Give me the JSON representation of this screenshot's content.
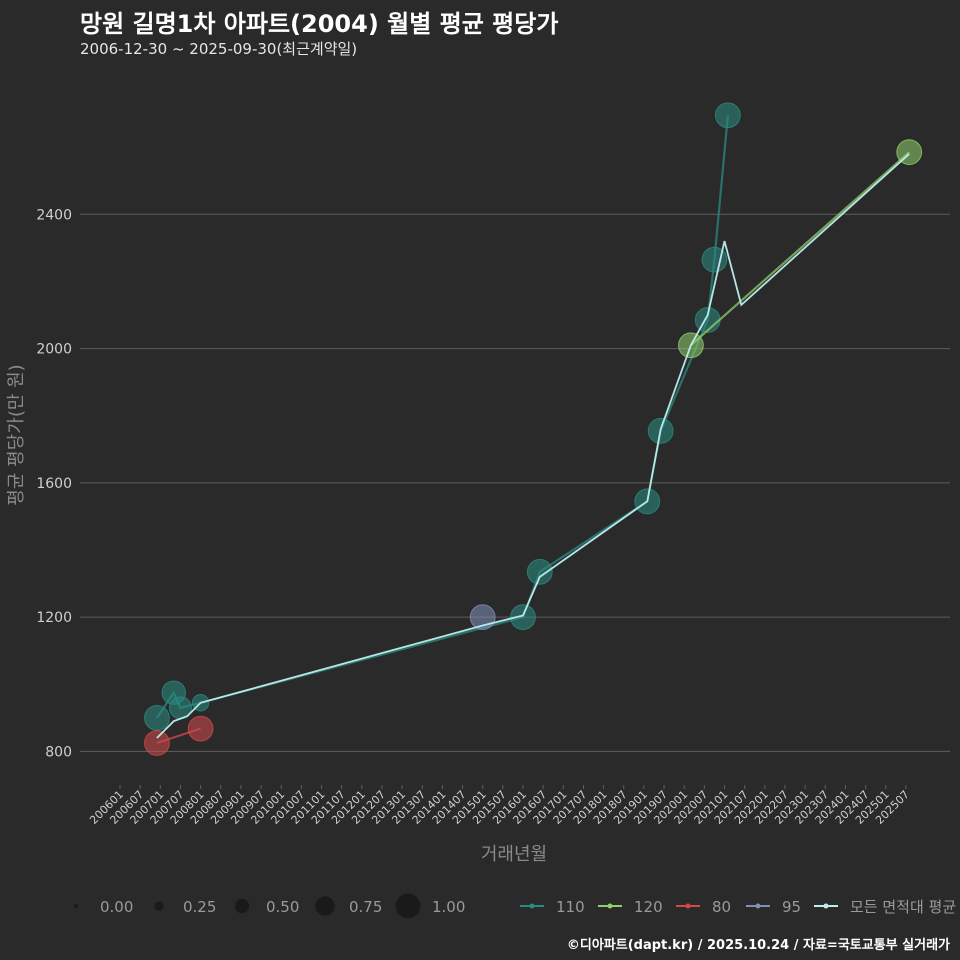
{
  "title": "망원 길명1차 아파트(2004) 월별 평균 평당가",
  "subtitle": "2006-12-30 ~ 2025-09-30(최근계약일)",
  "caption": "©디아파트(dapt.kr) / 2025.10.24 / 자료=국토교통부 실거래가",
  "colors": {
    "background": "#2a2a2b",
    "grid": "#5e5e5e",
    "s110": "#2a8b82",
    "s120": "#8fcf6e",
    "s80": "#d2484c",
    "s95": "#7f8fb8",
    "avg": "#bfeeee"
  },
  "chart_data": {
    "type": "line",
    "title": "망원 길명1차 아파트(2004) 월별 평균 평당가",
    "xlabel": "거래년월",
    "ylabel": "평균 평당가(만 원)",
    "ylim": [
      700,
      2800
    ],
    "yticks": [
      800,
      1200,
      1600,
      2000,
      2400
    ],
    "x_categories": [
      "200601",
      "200607",
      "200701",
      "200707",
      "200801",
      "200807",
      "200901",
      "200907",
      "201001",
      "201007",
      "201101",
      "201107",
      "201201",
      "201207",
      "201301",
      "201307",
      "201401",
      "201407",
      "201501",
      "201507",
      "201601",
      "201607",
      "201701",
      "201707",
      "201801",
      "201807",
      "201901",
      "201907",
      "202001",
      "202007",
      "202101",
      "202107",
      "202201",
      "202207",
      "202301",
      "202307",
      "202401",
      "202407",
      "202501",
      "202507"
    ],
    "series": [
      {
        "name": "110",
        "color_key": "s110",
        "points": [
          {
            "x": "2006-12",
            "y": 900,
            "size": 0.6
          },
          {
            "x": "2007-05",
            "y": 975,
            "size": 0.55
          },
          {
            "x": "2007-07",
            "y": 930,
            "size": 0.5
          },
          {
            "x": "2008-01",
            "y": 945,
            "size": 0.3
          },
          {
            "x": "2016-01",
            "y": 1200,
            "size": 0.6
          },
          {
            "x": "2016-06",
            "y": 1335,
            "size": 0.6
          },
          {
            "x": "2019-02",
            "y": 1545,
            "size": 0.6
          },
          {
            "x": "2019-06",
            "y": 1755,
            "size": 0.6
          },
          {
            "x": "2020-08",
            "y": 2085,
            "size": 0.6
          },
          {
            "x": "2020-10",
            "y": 2265,
            "size": 0.6
          },
          {
            "x": "2021-02",
            "y": 2695,
            "size": 0.6
          }
        ]
      },
      {
        "name": "120",
        "color_key": "s120",
        "points": [
          {
            "x": "2020-03",
            "y": 2010,
            "size": 0.6
          },
          {
            "x": "2025-08",
            "y": 2585,
            "size": 0.6
          }
        ]
      },
      {
        "name": "80",
        "color_key": "s80",
        "points": [
          {
            "x": "2006-12",
            "y": 825,
            "size": 0.6
          },
          {
            "x": "2008-01",
            "y": 868,
            "size": 0.6
          }
        ]
      },
      {
        "name": "95",
        "color_key": "s95",
        "points": [
          {
            "x": "2015-01",
            "y": 1200,
            "size": 0.6
          }
        ]
      },
      {
        "name": "모든 면적대 평균",
        "color_key": "avg",
        "points": [
          {
            "x": "2006-12",
            "y": 840
          },
          {
            "x": "2007-05",
            "y": 890
          },
          {
            "x": "2007-09",
            "y": 905
          },
          {
            "x": "2008-01",
            "y": 945
          },
          {
            "x": "2015-01",
            "y": 1175
          },
          {
            "x": "2016-01",
            "y": 1205
          },
          {
            "x": "2016-06",
            "y": 1320
          },
          {
            "x": "2019-02",
            "y": 1545
          },
          {
            "x": "2019-06",
            "y": 1760
          },
          {
            "x": "2020-03",
            "y": 2010
          },
          {
            "x": "2020-08",
            "y": 2100
          },
          {
            "x": "2021-01",
            "y": 2320
          },
          {
            "x": "2021-06",
            "y": 2130
          },
          {
            "x": "2025-08",
            "y": 2580
          }
        ]
      }
    ],
    "legend_sizes": [
      "0.00",
      "0.25",
      "0.50",
      "0.75",
      "1.00"
    ],
    "legend_series": [
      "110",
      "120",
      "80",
      "95",
      "모든 면적대 평균"
    ]
  }
}
